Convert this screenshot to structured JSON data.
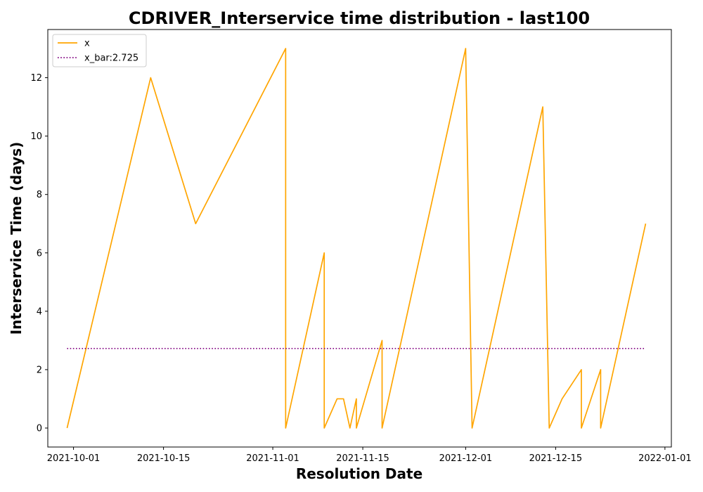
{
  "chart_data": {
    "type": "line",
    "title": "CDRIVER_Interservice time distribution - last100",
    "xlabel": "Resolution Date",
    "ylabel": "Interservice Time (days)",
    "xlim": [
      "2021-09-27",
      "2022-01-02"
    ],
    "ylim": [
      -0.65,
      13.65
    ],
    "x_ticks": [
      "2021-10-01",
      "2021-10-15",
      "2021-11-01",
      "2021-11-15",
      "2021-12-01",
      "2021-12-15",
      "2022-01-01"
    ],
    "y_ticks": [
      0,
      2,
      4,
      6,
      8,
      10,
      12
    ],
    "grid": false,
    "legend_position": "upper-left",
    "series": [
      {
        "name": "x",
        "style": "solid",
        "color": "#FFA500",
        "x": [
          "2021-09-30",
          "2021-10-13",
          "2021-10-20",
          "2021-11-03",
          "2021-11-03",
          "2021-11-09",
          "2021-11-09",
          "2021-11-11",
          "2021-11-12",
          "2021-11-13",
          "2021-11-14",
          "2021-11-14",
          "2021-11-18",
          "2021-11-18",
          "2021-12-01",
          "2021-12-02",
          "2021-12-13",
          "2021-12-14",
          "2021-12-16",
          "2021-12-19",
          "2021-12-19",
          "2021-12-22",
          "2021-12-22",
          "2021-12-29"
        ],
        "y": [
          0,
          12,
          7,
          13,
          0,
          6,
          0,
          1,
          1,
          0,
          1,
          0,
          3,
          0,
          13,
          0,
          11,
          0,
          1,
          2,
          0,
          2,
          0,
          7
        ]
      },
      {
        "name": "x_bar:2.725",
        "style": "dotted",
        "color": "#800080",
        "x": [
          "2021-09-30",
          "2021-12-29"
        ],
        "y": [
          2.725,
          2.725
        ]
      }
    ]
  }
}
